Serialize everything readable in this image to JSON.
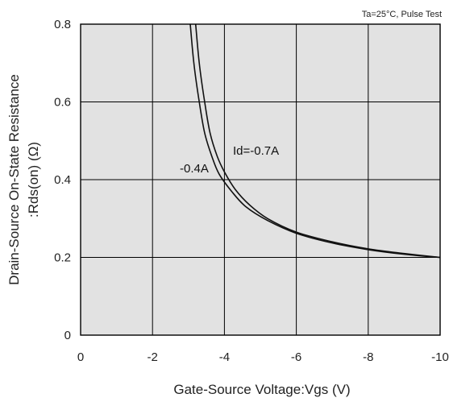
{
  "chart_data": {
    "type": "line",
    "title": "",
    "note": "Ta=25°C, Pulse Test",
    "xlabel": "Gate-Source Voltage:Vgs  (V)",
    "ylabel_line1": "Drain-Source On-State Resistance",
    "ylabel_line2": ":Rds(on)  (Ω)",
    "xlim": [
      0,
      -10
    ],
    "ylim": [
      0,
      0.8
    ],
    "x_ticks": [
      0,
      -2,
      -4,
      -6,
      -8,
      -10
    ],
    "x_tick_labels": [
      "0",
      "-2",
      "-4",
      "-6",
      "-8",
      "-10"
    ],
    "y_ticks": [
      0,
      0.2,
      0.4,
      0.6,
      0.8
    ],
    "y_tick_labels": [
      "0",
      "0.2",
      "0.4",
      "0.6",
      "0.8"
    ],
    "grid": true,
    "series": [
      {
        "name": "Id=-0.7A",
        "x": [
          -3.2,
          -3.3,
          -3.45,
          -3.6,
          -3.8,
          -4.0,
          -4.3,
          -4.7,
          -5.2,
          -6.0,
          -7.0,
          -8.0,
          -9.0,
          -10.0
        ],
        "y": [
          0.8,
          0.7,
          0.6,
          0.52,
          0.46,
          0.42,
          0.375,
          0.335,
          0.3,
          0.265,
          0.24,
          0.222,
          0.21,
          0.2
        ]
      },
      {
        "name": "-0.4A",
        "x": [
          -3.05,
          -3.15,
          -3.3,
          -3.45,
          -3.65,
          -3.85,
          -4.2,
          -4.6,
          -5.2,
          -6.0,
          -7.0,
          -8.0,
          -9.0,
          -10.0
        ],
        "y": [
          0.8,
          0.7,
          0.6,
          0.52,
          0.46,
          0.415,
          0.37,
          0.33,
          0.295,
          0.262,
          0.237,
          0.22,
          0.208,
          0.2
        ]
      }
    ]
  }
}
